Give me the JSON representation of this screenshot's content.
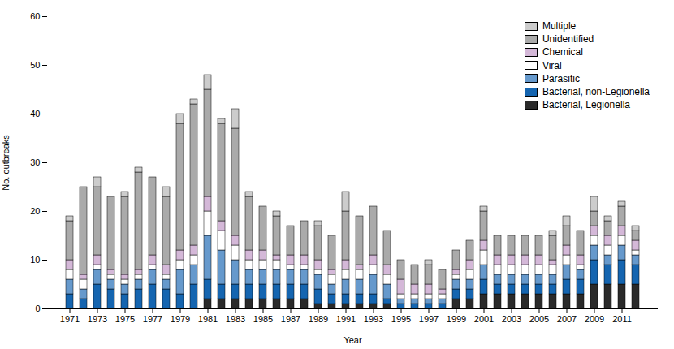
{
  "chart_data": {
    "type": "bar",
    "stacked": true,
    "categories": [
      "1971",
      null,
      "1973",
      null,
      "1975",
      null,
      "1977",
      null,
      "1979",
      null,
      "1981",
      null,
      "1983",
      null,
      "1985",
      null,
      "1987",
      null,
      "1989",
      null,
      "1991",
      null,
      "1993",
      null,
      "1995",
      null,
      "1997",
      null,
      "1999",
      null,
      "2001",
      null,
      "2003",
      null,
      "2005",
      null,
      "2007",
      null,
      "2009",
      null,
      "2011",
      null
    ],
    "series": [
      {
        "name": "Bacterial, Legionella",
        "color": "#2a2a2a",
        "values": [
          0,
          0,
          0,
          0,
          0,
          0,
          0,
          0,
          0,
          0,
          2,
          2,
          2,
          2,
          2,
          2,
          2,
          2,
          1,
          1,
          1,
          1,
          1,
          1,
          0,
          0,
          0,
          0,
          2,
          2,
          3,
          3,
          3,
          3,
          3,
          3,
          3,
          3,
          5,
          5,
          5,
          5
        ]
      },
      {
        "name": "Bacterial, non-Legionella",
        "color": "#1565b0",
        "values": [
          3,
          2,
          5,
          4,
          3,
          4,
          5,
          4,
          3,
          5,
          4,
          3,
          3,
          3,
          3,
          3,
          3,
          3,
          3,
          2,
          2,
          2,
          2,
          1,
          1,
          1,
          1,
          1,
          2,
          2,
          3,
          2,
          2,
          2,
          2,
          2,
          3,
          3,
          5,
          4,
          5,
          4
        ]
      },
      {
        "name": "Parasitic",
        "color": "#6699cc",
        "values": [
          3,
          2,
          3,
          2,
          2,
          2,
          3,
          2,
          5,
          4,
          9,
          7,
          5,
          3,
          3,
          3,
          3,
          3,
          3,
          2,
          3,
          3,
          4,
          3,
          1,
          1,
          1,
          1,
          2,
          2,
          3,
          2,
          2,
          2,
          2,
          2,
          3,
          2,
          3,
          2,
          3,
          2
        ]
      },
      {
        "name": "Viral",
        "color": "#ffffff",
        "values": [
          2,
          2,
          1,
          1,
          1,
          1,
          1,
          1,
          2,
          2,
          5,
          4,
          3,
          2,
          2,
          2,
          1,
          1,
          1,
          2,
          2,
          2,
          2,
          2,
          1,
          1,
          1,
          1,
          1,
          2,
          3,
          2,
          2,
          2,
          2,
          2,
          2,
          1,
          2,
          2,
          2,
          1
        ]
      },
      {
        "name": "Chemical",
        "color": "#d4b8d8",
        "values": [
          2,
          1,
          2,
          1,
          1,
          1,
          2,
          2,
          2,
          2,
          3,
          2,
          2,
          2,
          2,
          1,
          2,
          2,
          2,
          1,
          2,
          1,
          2,
          2,
          3,
          2,
          2,
          1,
          1,
          2,
          2,
          2,
          2,
          2,
          2,
          1,
          2,
          2,
          2,
          2,
          2,
          2
        ]
      },
      {
        "name": "Unidentified",
        "color": "#aaaaaa",
        "values": [
          8,
          18,
          14,
          15,
          16,
          20,
          16,
          14,
          26,
          29,
          22,
          20,
          22,
          11,
          9,
          8,
          6,
          7,
          7,
          7,
          10,
          10,
          10,
          7,
          4,
          4,
          4,
          4,
          4,
          4,
          6,
          4,
          4,
          4,
          4,
          5,
          4,
          5,
          3,
          3,
          4,
          2
        ]
      },
      {
        "name": "Multiple",
        "color": "#cccccc",
        "values": [
          1,
          0,
          2,
          0,
          1,
          1,
          0,
          2,
          2,
          1,
          3,
          1,
          4,
          1,
          0,
          1,
          0,
          0,
          1,
          0,
          4,
          0,
          0,
          0,
          0,
          0,
          1,
          0,
          0,
          0,
          1,
          0,
          0,
          0,
          0,
          1,
          2,
          0,
          3,
          1,
          1,
          1
        ]
      }
    ],
    "xlabel": "Year",
    "ylabel": "No. outbreaks",
    "ylim": [
      0,
      60
    ],
    "yticks": [
      0,
      10,
      20,
      30,
      40,
      50,
      60
    ],
    "grid": false,
    "legend": "upper right"
  }
}
